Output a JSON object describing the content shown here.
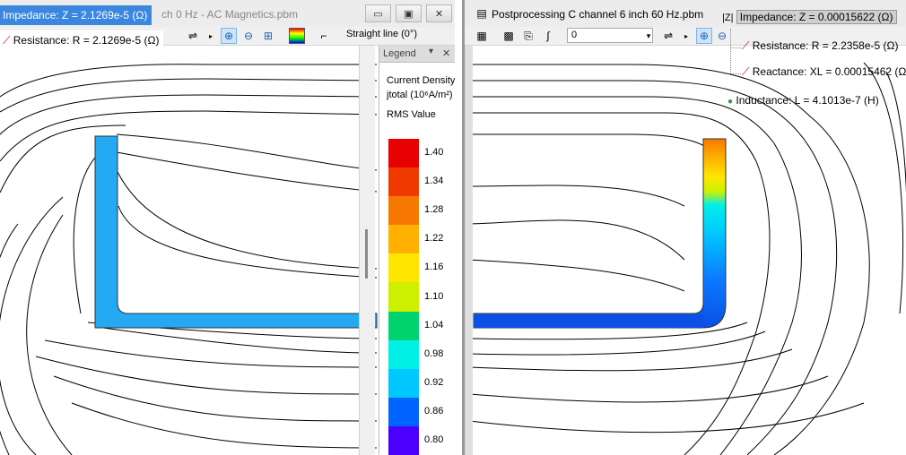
{
  "left_window": {
    "title": "ch 0 Hz - AC Magnetics.pbm",
    "view_mode": "Straight line (0°)",
    "impedance_label": "Impedance: Z = 2.1269e-5 (Ω)",
    "resistance_label": "Resistance: R = 2.1269e-5 (Ω)",
    "buttons": {
      "minimize": "▭",
      "restore": "▣",
      "close": "✕"
    }
  },
  "legend": {
    "header": "Legend",
    "title_line1": "Current Density",
    "title_line2": "jtotal (10⁶A/m²)",
    "title_line3": "RMS Value",
    "values": [
      "1.40",
      "1.34",
      "1.28",
      "1.22",
      "1.16",
      "1.10",
      "1.04",
      "0.98",
      "0.92",
      "0.86",
      "0.80"
    ],
    "colors": [
      "#e60000",
      "#f03a00",
      "#f77800",
      "#ffb000",
      "#ffe600",
      "#ccf000",
      "#00d26e",
      "#00f0e6",
      "#00c8ff",
      "#0064ff",
      "#4b00ff"
    ]
  },
  "right_window": {
    "title": "Postprocessing C channel 6 inch 60 Hz.pbm",
    "select_value": "0"
  },
  "results_tree": {
    "impedance": "Impedance: Z = 0.00015622 (Ω)",
    "resistance": "Resistance: R = 2.2358e-5 (Ω)",
    "reactance": "Reactance: XL = 0.00015462 (Ω)",
    "inductance": "Inductance: L = 4.1013e-7 (H)"
  }
}
